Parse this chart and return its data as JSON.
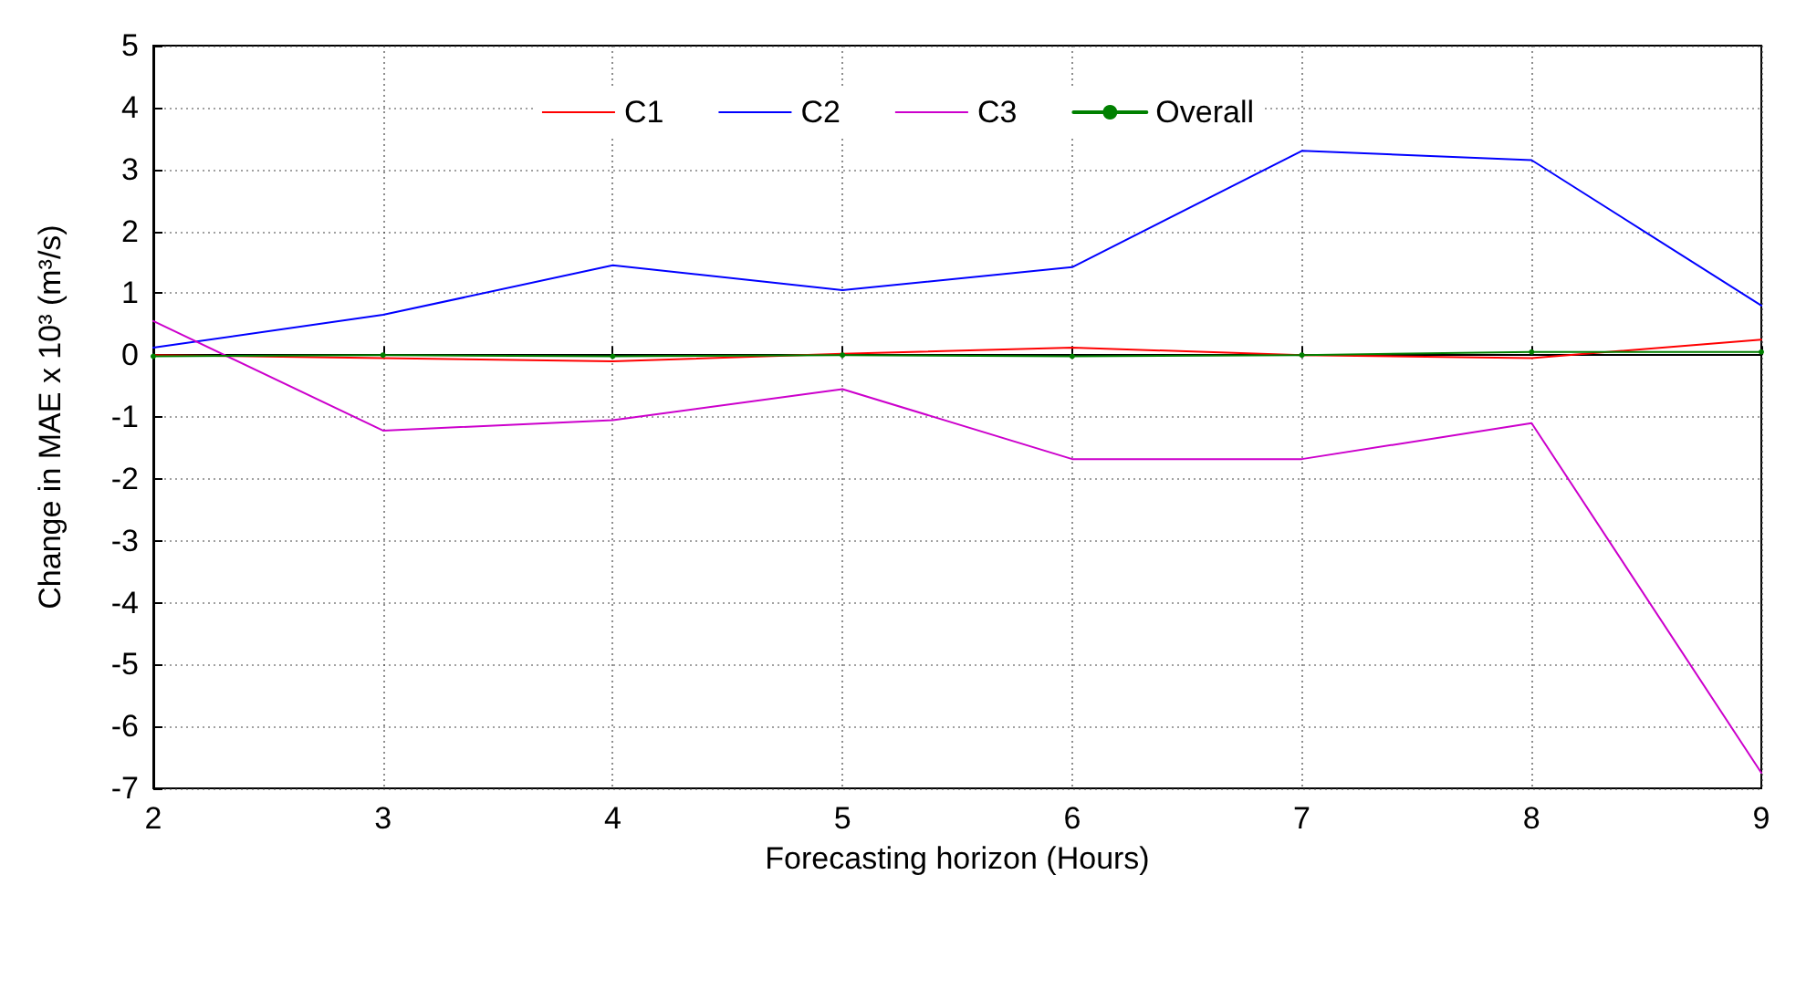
{
  "chart_data": {
    "type": "line",
    "xlabel": "Forecasting horizon (Hours)",
    "ylabel": "Change in MAE x 10³ (m³/s)",
    "x": [
      2,
      3,
      4,
      5,
      6,
      7,
      8,
      9
    ],
    "series": [
      {
        "name": "C1",
        "color": "#ff0000",
        "values": [
          0,
          -0.05,
          -0.1,
          0.02,
          0.12,
          0,
          -0.05,
          0.25
        ]
      },
      {
        "name": "C2",
        "color": "#0000ff",
        "values": [
          0.12,
          0.65,
          1.45,
          1.05,
          1.42,
          3.3,
          3.15,
          0.8
        ]
      },
      {
        "name": "C3",
        "color": "#cc00cc",
        "values": [
          0.55,
          -1.22,
          -1.05,
          -0.55,
          -1.68,
          -1.68,
          -1.1,
          -6.75
        ]
      },
      {
        "name": "Overall",
        "color": "#008000",
        "marker": "circle",
        "values": [
          -0.02,
          0,
          -0.02,
          0,
          -0.02,
          0,
          0.05,
          0.05
        ]
      }
    ],
    "xlim": [
      2,
      9
    ],
    "xticks": [
      2,
      3,
      4,
      5,
      6,
      7,
      8,
      9
    ],
    "ylim": [
      -7,
      5
    ],
    "yticks": [
      -7,
      -6,
      -5,
      -4,
      -3,
      -2,
      -1,
      0,
      1,
      2,
      3,
      4,
      5
    ],
    "grid": true,
    "legend": "top",
    "marker": "none",
    "line_style": "solid"
  }
}
